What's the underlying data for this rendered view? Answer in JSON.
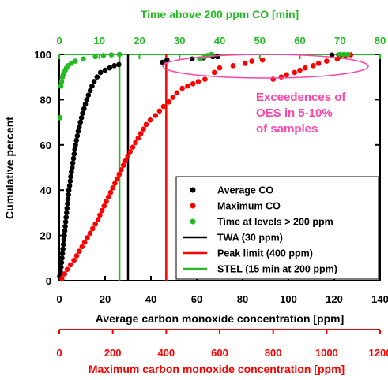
{
  "chart_data": {
    "type": "scatter",
    "xlabel_bottom": "Average carbon monoxide concentration [ppm]",
    "xlabel_top": "Time above 200 ppm CO [min]",
    "xlabel_bottom2": "Maximum carbon monoxide concentration [ppm]",
    "ylabel": "Cumulative percent",
    "axes": {
      "avg": {
        "range": [
          0,
          140
        ],
        "ticks": [
          0,
          20,
          40,
          60,
          80,
          100,
          120,
          140
        ],
        "color": "#000000"
      },
      "time": {
        "range": [
          0,
          80
        ],
        "ticks": [
          0,
          10,
          20,
          30,
          40,
          50,
          60,
          70,
          80
        ],
        "color": "#22bb22"
      },
      "max": {
        "range": [
          0,
          1200
        ],
        "ticks": [
          0,
          200,
          400,
          600,
          800,
          1000,
          1200
        ],
        "color": "#ff0000"
      },
      "y": {
        "range": [
          0,
          100
        ],
        "ticks": [
          0,
          20,
          40,
          60,
          80,
          100
        ]
      }
    },
    "series": [
      {
        "name": "Average CO",
        "axis": "avg",
        "color": "#000000",
        "points": [
          [
            0.2,
            2
          ],
          [
            0.5,
            4
          ],
          [
            0.8,
            6
          ],
          [
            1.0,
            8
          ],
          [
            1.2,
            10
          ],
          [
            1.4,
            12
          ],
          [
            1.6,
            14
          ],
          [
            1.8,
            16
          ],
          [
            2.0,
            18
          ],
          [
            2.2,
            20
          ],
          [
            2.4,
            22
          ],
          [
            2.6,
            24
          ],
          [
            2.8,
            26
          ],
          [
            3.0,
            28
          ],
          [
            3.2,
            30
          ],
          [
            3.4,
            32
          ],
          [
            3.6,
            34
          ],
          [
            3.8,
            36
          ],
          [
            4.0,
            38
          ],
          [
            4.2,
            40
          ],
          [
            4.5,
            42
          ],
          [
            4.8,
            44
          ],
          [
            5.0,
            46
          ],
          [
            5.3,
            48
          ],
          [
            5.6,
            50
          ],
          [
            5.9,
            52
          ],
          [
            6.2,
            54
          ],
          [
            6.5,
            56
          ],
          [
            6.8,
            58
          ],
          [
            7.1,
            60
          ],
          [
            7.5,
            62
          ],
          [
            7.9,
            64
          ],
          [
            8.3,
            66
          ],
          [
            8.7,
            68
          ],
          [
            9.2,
            70
          ],
          [
            9.7,
            72
          ],
          [
            10.2,
            74
          ],
          [
            10.8,
            76
          ],
          [
            11.4,
            78
          ],
          [
            12.0,
            80
          ],
          [
            12.7,
            82
          ],
          [
            13.5,
            84
          ],
          [
            14.3,
            86
          ],
          [
            15.2,
            88
          ],
          [
            16.5,
            90
          ],
          [
            18,
            92
          ],
          [
            20,
            93
          ],
          [
            22,
            94
          ],
          [
            24,
            95
          ],
          [
            26,
            95.5
          ],
          [
            45,
            96.5
          ],
          [
            47,
            97.5
          ],
          [
            58,
            98
          ],
          [
            63,
            98.5
          ],
          [
            67,
            99
          ],
          [
            69,
            99
          ],
          [
            119,
            99.7
          ],
          [
            122,
            99.7
          ]
        ]
      },
      {
        "name": "Maximum CO",
        "axis": "max",
        "color": "#ff0000",
        "points": [
          [
            10,
            1
          ],
          [
            20,
            3
          ],
          [
            30,
            5
          ],
          [
            42,
            7
          ],
          [
            55,
            9
          ],
          [
            65,
            11
          ],
          [
            75,
            13
          ],
          [
            85,
            15
          ],
          [
            95,
            17
          ],
          [
            105,
            19
          ],
          [
            115,
            21
          ],
          [
            125,
            23
          ],
          [
            135,
            25
          ],
          [
            145,
            27
          ],
          [
            152,
            29
          ],
          [
            160,
            31
          ],
          [
            168,
            33
          ],
          [
            176,
            35
          ],
          [
            184,
            37
          ],
          [
            192,
            39
          ],
          [
            200,
            41
          ],
          [
            208,
            43
          ],
          [
            216,
            45
          ],
          [
            224,
            47
          ],
          [
            232,
            49
          ],
          [
            240,
            51
          ],
          [
            248,
            53
          ],
          [
            256,
            55
          ],
          [
            265,
            57
          ],
          [
            275,
            59
          ],
          [
            285,
            61
          ],
          [
            295,
            63
          ],
          [
            305,
            65
          ],
          [
            315,
            67
          ],
          [
            325,
            69
          ],
          [
            340,
            71
          ],
          [
            360,
            73
          ],
          [
            375,
            75
          ],
          [
            390,
            77
          ],
          [
            410,
            79
          ],
          [
            425,
            81
          ],
          [
            440,
            83
          ],
          [
            460,
            85
          ],
          [
            480,
            86
          ],
          [
            500,
            87
          ],
          [
            520,
            88
          ],
          [
            545,
            89
          ],
          [
            580,
            92
          ],
          [
            600,
            94
          ],
          [
            650,
            95
          ],
          [
            695,
            96
          ],
          [
            720,
            97
          ],
          [
            760,
            97.5
          ],
          [
            800,
            89
          ],
          [
            830,
            90
          ],
          [
            850,
            91
          ],
          [
            880,
            92
          ],
          [
            900,
            93
          ],
          [
            920,
            94
          ],
          [
            950,
            95
          ],
          [
            970,
            96
          ],
          [
            1000,
            97
          ],
          [
            1040,
            98
          ],
          [
            1050,
            99
          ],
          [
            1070,
            99.5
          ],
          [
            1090,
            99.8
          ]
        ]
      },
      {
        "name": "Time at levels > 200 ppm",
        "axis": "time",
        "color": "#22bb22",
        "points": [
          [
            0.2,
            72
          ],
          [
            0.4,
            86
          ],
          [
            0.6,
            88
          ],
          [
            0.8,
            90
          ],
          [
            1.0,
            91
          ],
          [
            1.2,
            92
          ],
          [
            1.5,
            93
          ],
          [
            1.8,
            94
          ],
          [
            2.2,
            95
          ],
          [
            3,
            96
          ],
          [
            4,
            97
          ],
          [
            6,
            98
          ],
          [
            9,
            99
          ],
          [
            11,
            99.5
          ],
          [
            13,
            99.8
          ],
          [
            15,
            100
          ],
          [
            35,
            98
          ],
          [
            36,
            99
          ],
          [
            37,
            99.5
          ],
          [
            38,
            100
          ],
          [
            70,
            100
          ],
          [
            71,
            100
          ],
          [
            72,
            100
          ]
        ]
      }
    ],
    "reference_lines": [
      {
        "name": "TWA (30 ppm)",
        "axis": "avg",
        "value": 30,
        "color": "#000000"
      },
      {
        "name": "Peak limit (400 ppm)",
        "axis": "max",
        "value": 400,
        "color": "#ff0000"
      },
      {
        "name": "STEL (15 min at 200 ppm)",
        "axis": "time",
        "value": 15,
        "color": "#22bb22"
      }
    ],
    "annotation": {
      "text_lines": [
        "Exceedences of",
        "OES in 5-10%",
        "of samples"
      ],
      "color": "#ff44aa"
    },
    "legend": {
      "placement": "bottom-right",
      "entries": [
        {
          "label": "Average CO",
          "kind": "marker",
          "color": "#000000"
        },
        {
          "label": "Maximum CO",
          "kind": "marker",
          "color": "#ff0000"
        },
        {
          "label": "Time at levels > 200 ppm",
          "kind": "marker",
          "color": "#22bb22"
        },
        {
          "label": "TWA (30 ppm)",
          "kind": "line",
          "color": "#000000"
        },
        {
          "label": "Peak limit (400 ppm)",
          "kind": "line",
          "color": "#ff0000"
        },
        {
          "label": "STEL (15 min at 200 ppm)",
          "kind": "line",
          "color": "#22bb22"
        }
      ]
    },
    "grid": false
  }
}
